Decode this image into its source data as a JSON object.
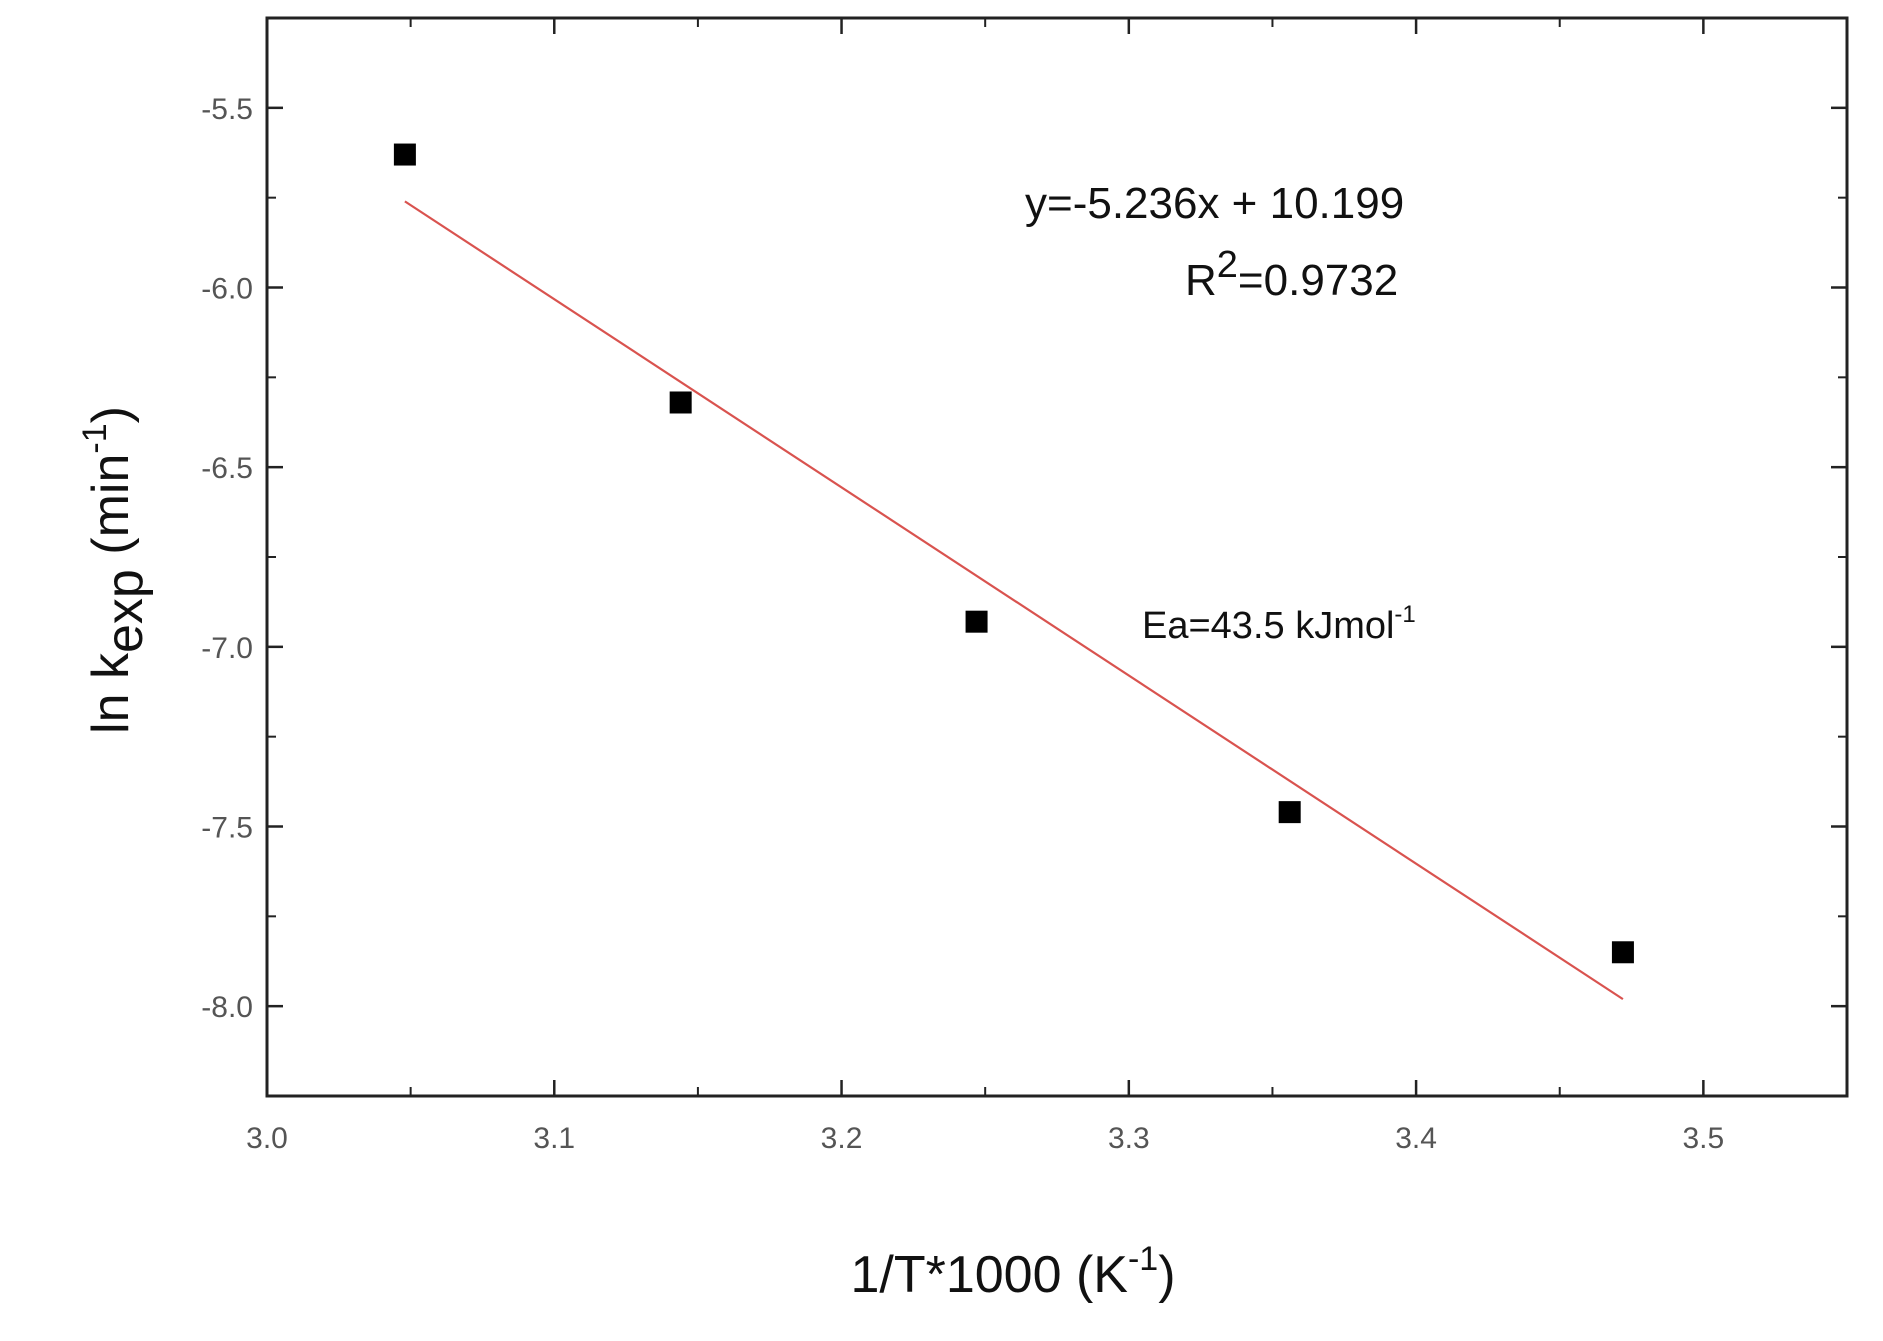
{
  "chart_data": {
    "type": "scatter",
    "xlabel": {
      "base": "1/T*1000 (K",
      "sup": "-1",
      "tail": ")"
    },
    "ylabel": {
      "base": "ln k",
      "sub": "exp",
      "mid": " (min",
      "sup": "-1",
      "tail": ")"
    },
    "xlim": [
      3.0,
      3.55
    ],
    "ylim": [
      -8.25,
      -5.25
    ],
    "xticks": [
      3.0,
      3.1,
      3.2,
      3.3,
      3.4,
      3.5
    ],
    "xtick_labels": [
      "3.0",
      "3.1",
      "3.2",
      "3.3",
      "3.4",
      "3.5"
    ],
    "yticks": [
      -5.5,
      -6.0,
      -6.5,
      -7.0,
      -7.5,
      -8.0
    ],
    "ytick_labels": [
      "-5.5",
      "-6.0",
      "-6.5",
      "-7.0",
      "-7.5",
      "-8.0"
    ],
    "grid": false,
    "points": [
      {
        "x": 3.048,
        "y": -5.63
      },
      {
        "x": 3.144,
        "y": -6.32
      },
      {
        "x": 3.247,
        "y": -6.93
      },
      {
        "x": 3.356,
        "y": -7.46
      },
      {
        "x": 3.472,
        "y": -7.85
      }
    ],
    "fit": {
      "slope": -5.236,
      "intercept": 10.199,
      "x_range": [
        3.048,
        3.472
      ],
      "color": "#d9534f"
    },
    "marker_color": "#000000",
    "annotations": {
      "equation": "y=-5.236x + 10.199",
      "r2_base": "R",
      "r2_sup": "2",
      "r2_value": "=0.9732",
      "ea_base": "Ea=43.5 kJmol",
      "ea_sup": "-1"
    }
  }
}
